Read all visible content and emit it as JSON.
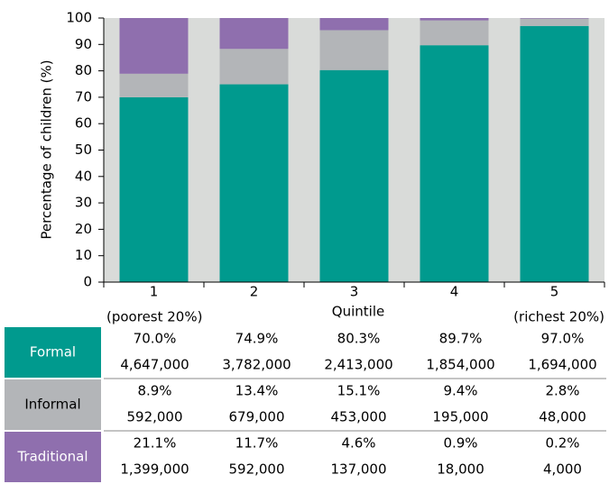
{
  "chart_data": {
    "type": "stacked_bar",
    "y_label": "Percentage of children (%)",
    "x_label": "Quintile",
    "categories": [
      "1",
      "2",
      "3",
      "4",
      "5"
    ],
    "category_notes": [
      "(poorest 20%)",
      null,
      null,
      null,
      "(richest 20%)"
    ],
    "ylim": [
      0,
      100
    ],
    "yticks": [
      0,
      10,
      20,
      30,
      40,
      50,
      60,
      70,
      80,
      90,
      100
    ],
    "plot_background": "#d9dbd9",
    "series": [
      {
        "name": "Formal",
        "color": "#009a8e",
        "values": [
          70.0,
          74.9,
          80.3,
          89.7,
          97.0
        ],
        "value_labels": [
          "70.0%",
          "74.9%",
          "80.3%",
          "89.7%",
          "97.0%"
        ],
        "counts": [
          "4,647,000",
          "3,782,000",
          "2,413,000",
          "1,854,000",
          "1,694,000"
        ]
      },
      {
        "name": "Informal",
        "color": "#b3b5b8",
        "values": [
          8.9,
          13.4,
          15.1,
          9.4,
          2.8
        ],
        "value_labels": [
          "8.9%",
          "13.4%",
          "15.1%",
          "9.4%",
          "2.8%"
        ],
        "counts": [
          "592,000",
          "679,000",
          "453,000",
          "195,000",
          "48,000"
        ]
      },
      {
        "name": "Traditional",
        "color": "#8f6fae",
        "values": [
          21.1,
          11.7,
          4.6,
          0.9,
          0.2
        ],
        "value_labels": [
          "21.1%",
          "11.7%",
          "4.6%",
          "0.9%",
          "0.2%"
        ],
        "counts": [
          "1,399,000",
          "592,000",
          "137,000",
          "18,000",
          "4,000"
        ]
      }
    ]
  }
}
